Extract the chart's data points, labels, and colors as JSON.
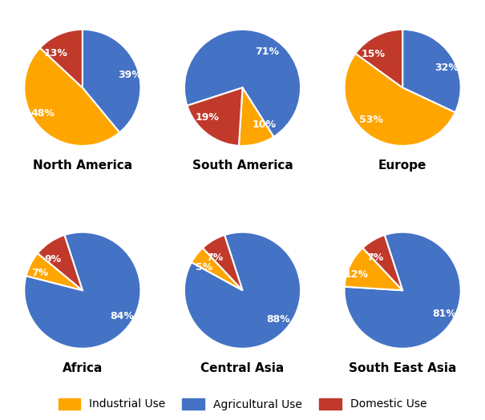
{
  "regions": [
    "North America",
    "South America",
    "Europe",
    "Africa",
    "Central Asia",
    "South East Asia"
  ],
  "data": {
    "North America": {
      "Agricultural Use": 39,
      "Industrial Use": 48,
      "Domestic Use": 13
    },
    "South America": {
      "Agricultural Use": 71,
      "Industrial Use": 10,
      "Domestic Use": 19
    },
    "Europe": {
      "Agricultural Use": 32,
      "Industrial Use": 53,
      "Domestic Use": 15
    },
    "Africa": {
      "Agricultural Use": 84,
      "Industrial Use": 7,
      "Domestic Use": 9
    },
    "Central Asia": {
      "Agricultural Use": 88,
      "Industrial Use": 5,
      "Domestic Use": 7
    },
    "South East Asia": {
      "Agricultural Use": 81,
      "Industrial Use": 12,
      "Domestic Use": 7
    }
  },
  "slice_orders": {
    "North America": [
      "Agricultural Use",
      "Industrial Use",
      "Domestic Use"
    ],
    "South America": [
      "Agricultural Use",
      "Industrial Use",
      "Domestic Use"
    ],
    "Europe": [
      "Agricultural Use",
      "Industrial Use",
      "Domestic Use"
    ],
    "Africa": [
      "Agricultural Use",
      "Industrial Use",
      "Domestic Use"
    ],
    "Central Asia": [
      "Agricultural Use",
      "Industrial Use",
      "Domestic Use"
    ],
    "South East Asia": [
      "Agricultural Use",
      "Industrial Use",
      "Domestic Use"
    ]
  },
  "start_angles": {
    "North America": 90,
    "South America": 198,
    "Europe": 90,
    "Africa": 108,
    "Central Asia": 108,
    "South East Asia": 108
  },
  "colors": {
    "Industrial Use": "#FFA500",
    "Agricultural Use": "#4472C4",
    "Domestic Use": "#C0392B"
  },
  "category_order": [
    "Industrial Use",
    "Agricultural Use",
    "Domestic Use"
  ],
  "background_color": "#FFFFFF",
  "label_fontsize": 9,
  "title_fontsize": 11,
  "legend_fontsize": 10
}
